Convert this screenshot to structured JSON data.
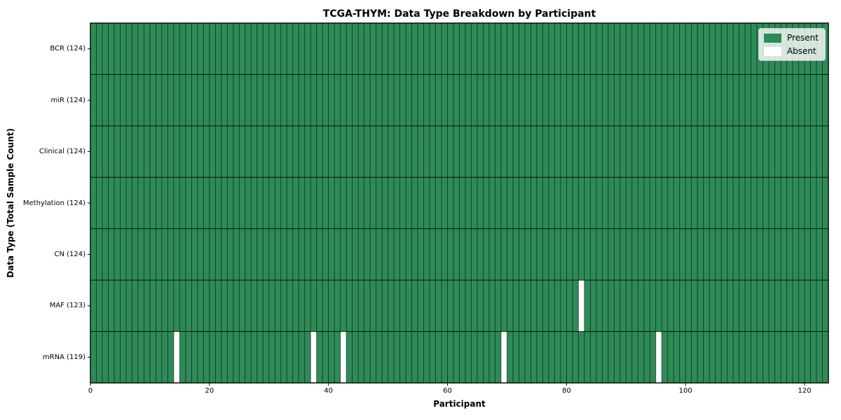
{
  "chart_data": {
    "type": "heatmap",
    "title": "TCGA-THYM: Data Type Breakdown by Participant",
    "xlabel": "Participant",
    "ylabel": "Data Type (Total Sample Count)",
    "n_participants": 124,
    "xlim": [
      0,
      124
    ],
    "x_ticks": [
      0,
      20,
      40,
      60,
      80,
      100,
      120
    ],
    "rows": [
      {
        "data_type": "BCR",
        "label": "BCR (124)",
        "present_count": 124,
        "absent_participants": []
      },
      {
        "data_type": "miR",
        "label": "miR (124)",
        "present_count": 124,
        "absent_participants": []
      },
      {
        "data_type": "Clinical",
        "label": "Clinical (124)",
        "present_count": 124,
        "absent_participants": []
      },
      {
        "data_type": "Methylation",
        "label": "Methylation (124)",
        "present_count": 124,
        "absent_participants": []
      },
      {
        "data_type": "CN",
        "label": "CN (124)",
        "present_count": 124,
        "absent_participants": []
      },
      {
        "data_type": "MAF",
        "label": "MAF (123)",
        "present_count": 123,
        "absent_participants": [
          82
        ]
      },
      {
        "data_type": "mRNA",
        "label": "mRNA (119)",
        "present_count": 119,
        "absent_participants": [
          14,
          37,
          42,
          69,
          95
        ]
      }
    ],
    "legend": [
      {
        "label": "Present",
        "color": "#2e8b57"
      },
      {
        "label": "Absent",
        "color": "#ffffff"
      }
    ],
    "legend_position": "upper right",
    "grid": true,
    "colors": {
      "present": "#2e8b57",
      "absent": "#ffffff",
      "grid": "#000000",
      "spine": "#000000",
      "legend_border": "#cccccc",
      "text": "#000000"
    }
  }
}
